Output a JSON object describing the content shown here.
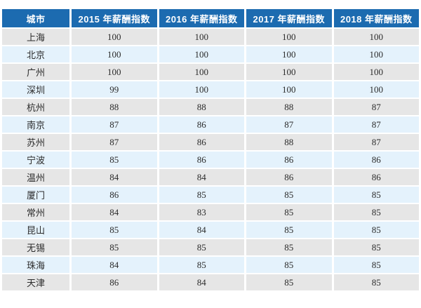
{
  "colors": {
    "header_bg": "#1c6bb0",
    "header_text": "#ffffff",
    "row_gray_bg": "#e6e6e6",
    "row_blue_bg": "#e4f2fc",
    "cell_text": "#2b2b2b",
    "page_bg": "#ffffff"
  },
  "chart_data": {
    "type": "table",
    "title": "",
    "columns": [
      "城市",
      "2015 年薪酬指数",
      "2016 年薪酬指数",
      "2017 年薪酬指数",
      "2018 年薪酬指数"
    ],
    "rows": [
      [
        "上海",
        100,
        100,
        100,
        100
      ],
      [
        "北京",
        100,
        100,
        100,
        100
      ],
      [
        "广州",
        100,
        100,
        100,
        100
      ],
      [
        "深圳",
        99,
        100,
        100,
        100
      ],
      [
        "杭州",
        88,
        88,
        88,
        87
      ],
      [
        "南京",
        87,
        86,
        87,
        87
      ],
      [
        "苏州",
        87,
        86,
        88,
        87
      ],
      [
        "宁波",
        85,
        86,
        86,
        86
      ],
      [
        "温州",
        84,
        84,
        86,
        86
      ],
      [
        "厦门",
        86,
        85,
        85,
        85
      ],
      [
        "常州",
        84,
        83,
        85,
        85
      ],
      [
        "昆山",
        85,
        84,
        85,
        85
      ],
      [
        "无锡",
        85,
        85,
        85,
        85
      ],
      [
        "珠海",
        84,
        85,
        85,
        85
      ],
      [
        "天津",
        86,
        84,
        85,
        85
      ]
    ]
  }
}
